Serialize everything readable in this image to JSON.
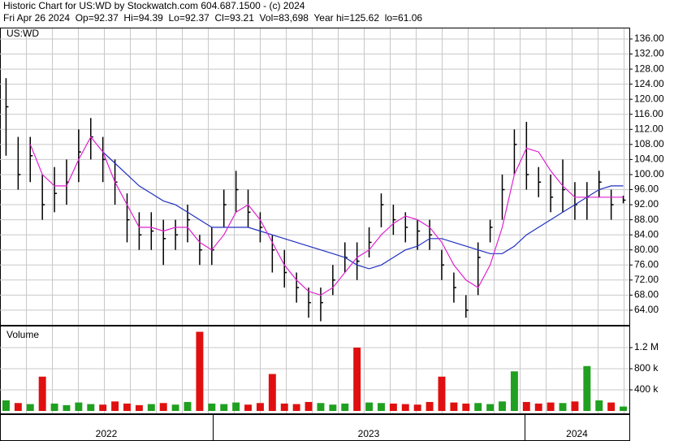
{
  "header": {
    "title": "Historic Chart for US:WD by Stockwatch.com 604.687.1500 - (c) 2024",
    "quote": "Fri Apr 26 2024  Op=92.37  Hi=94.39  Lo=92.37  Cl=93.21  Vol=83,698  Year hi=125.62  lo=61.06"
  },
  "chart_data": [
    {
      "type": "ohlc",
      "title": "US:WD",
      "high": [
        125.6,
        110,
        110,
        100,
        102,
        104,
        112,
        115,
        110,
        104,
        95,
        90,
        90,
        88,
        88,
        92,
        84,
        86,
        96,
        101,
        96,
        90,
        84,
        80,
        74,
        70,
        70,
        76,
        82,
        82,
        86,
        95,
        92,
        90,
        88,
        88,
        80,
        74,
        68,
        82,
        88,
        100,
        112,
        114,
        102,
        100,
        104,
        98,
        98,
        101,
        96,
        94.39
      ],
      "low": [
        105,
        96,
        98,
        88,
        90,
        92,
        98,
        104,
        98,
        92,
        82,
        80,
        80,
        76,
        80,
        82,
        76,
        76,
        86,
        90,
        86,
        82,
        74,
        70,
        66,
        62,
        61.06,
        68,
        74,
        72,
        78,
        86,
        84,
        82,
        80,
        80,
        72,
        66,
        62,
        68,
        82,
        88,
        100,
        96,
        94,
        90,
        90,
        88,
        88,
        94,
        88,
        92.37
      ],
      "close": [
        118,
        100,
        105,
        92,
        95,
        98,
        106,
        110,
        104,
        98,
        88,
        84,
        85,
        83,
        84,
        88,
        80,
        80,
        92,
        96,
        90,
        86,
        80,
        74,
        70,
        66,
        66,
        72,
        78,
        77,
        82,
        92,
        88,
        86,
        85,
        84,
        76,
        70,
        64,
        78,
        86,
        96,
        108,
        100,
        98,
        94,
        96,
        92,
        94,
        98,
        92,
        93.21
      ],
      "ma_short": {
        "color": "#e020d0",
        "values": [
          null,
          null,
          108,
          100,
          97,
          97,
          104,
          110,
          106,
          98,
          92,
          86,
          86,
          85,
          86,
          86,
          82,
          80,
          84,
          90,
          92,
          88,
          82,
          76,
          72,
          69,
          68,
          70,
          74,
          78,
          80,
          84,
          87,
          89,
          88,
          86,
          82,
          76,
          72,
          70,
          76,
          86,
          100,
          107,
          106,
          101,
          97,
          94,
          94,
          94,
          94,
          94
        ]
      },
      "ma_long": {
        "color": "#2030c0",
        "values": [
          null,
          null,
          null,
          null,
          null,
          null,
          null,
          null,
          106,
          103,
          100,
          97,
          95,
          93,
          92,
          90,
          88,
          86,
          86,
          86,
          86,
          85,
          84,
          83,
          82,
          81,
          80,
          79,
          78,
          76,
          75,
          76,
          78,
          80,
          81,
          83,
          83,
          82,
          81,
          80,
          79,
          79,
          81,
          84,
          86,
          88,
          90,
          92,
          94,
          96,
          97,
          97
        ]
      },
      "ylim": [
        60.1,
        138.8
      ],
      "yticks": [
        {
          "value": 64,
          "label": "64.00"
        },
        {
          "value": 68,
          "label": "68.00"
        },
        {
          "value": 72,
          "label": "72.00"
        },
        {
          "value": 76,
          "label": "76.00"
        },
        {
          "value": 80,
          "label": "80.00"
        },
        {
          "value": 84,
          "label": "84.00"
        },
        {
          "value": 88,
          "label": "88.00"
        },
        {
          "value": 92,
          "label": "92.00"
        },
        {
          "value": 96,
          "label": "96.00"
        },
        {
          "value": 100,
          "label": "100.00"
        },
        {
          "value": 104,
          "label": "104.00"
        },
        {
          "value": 108,
          "label": "108.00"
        },
        {
          "value": 112,
          "label": "112.00"
        },
        {
          "value": 116,
          "label": "116.00"
        },
        {
          "value": 120,
          "label": "120.00"
        },
        {
          "value": 124,
          "label": "124.00"
        },
        {
          "value": 128,
          "label": "128.00"
        },
        {
          "value": 132,
          "label": "132.00"
        },
        {
          "value": 136,
          "label": "136.00"
        }
      ],
      "x_labels": [
        "2022",
        "2023",
        "2024"
      ],
      "grid": true
    },
    {
      "type": "volume",
      "title": "Volume",
      "values": [
        200000,
        150000,
        130000,
        650000,
        140000,
        110000,
        160000,
        130000,
        120000,
        180000,
        140000,
        110000,
        130000,
        150000,
        120000,
        170000,
        1500000,
        140000,
        130000,
        160000,
        120000,
        150000,
        700000,
        140000,
        130000,
        170000,
        150000,
        120000,
        140000,
        1200000,
        160000,
        150000,
        140000,
        130000,
        120000,
        170000,
        650000,
        160000,
        140000,
        150000,
        130000,
        180000,
        750000,
        170000,
        140000,
        160000,
        150000,
        180000,
        850000,
        200000,
        160000,
        83698
      ],
      "up_color": "#20a020",
      "down_color": "#e01010",
      "ylim": [
        0,
        1600000
      ],
      "yticks": [
        {
          "value": 400000,
          "label": "400 k"
        },
        {
          "value": 800000,
          "label": "800 k"
        },
        {
          "value": 1200000,
          "label": "1.2 M"
        }
      ],
      "grid": true
    }
  ]
}
